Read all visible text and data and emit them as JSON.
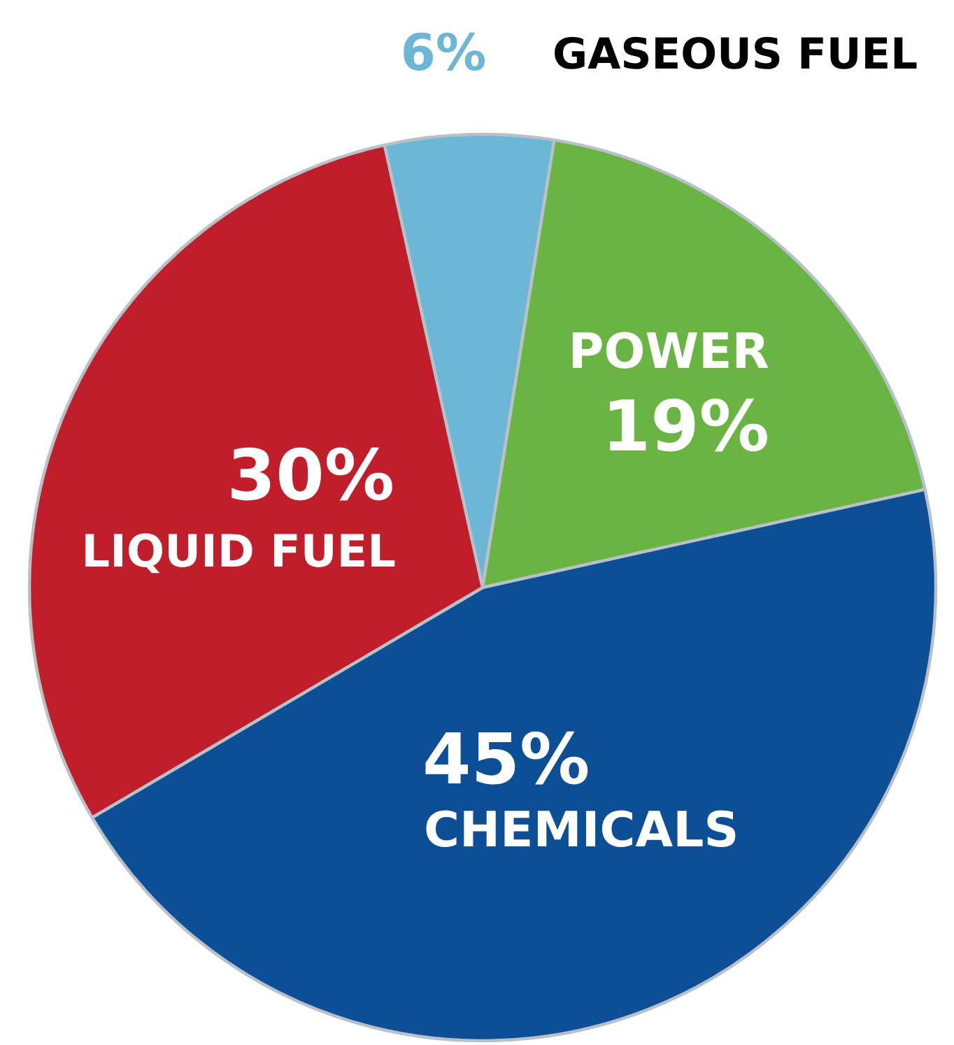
{
  "chart_data": {
    "type": "pie",
    "categories": [
      "GASEOUS FUEL",
      "POWER",
      "CHEMICALS",
      "LIQUID FUEL"
    ],
    "values": [
      6,
      19,
      45,
      30
    ],
    "colors": [
      "#6cb6d6",
      "#6ab443",
      "#0c4f97",
      "#bf1e2a"
    ],
    "value_labels": [
      "6%",
      "19%",
      "45%",
      "30%"
    ]
  }
}
